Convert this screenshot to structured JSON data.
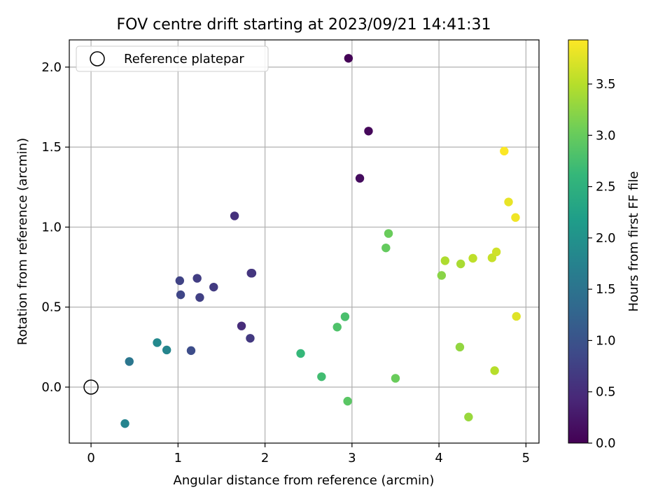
{
  "chart_data": {
    "type": "scatter",
    "title": "FOV centre drift starting at 2023/09/21 14:41:31",
    "xlabel": "Angular distance from reference (arcmin)",
    "ylabel": "Rotation from reference (arcmin)",
    "xlim": [
      -0.25,
      5.15
    ],
    "ylim": [
      -0.35,
      2.17
    ],
    "xticks": [
      0,
      1,
      2,
      3,
      4,
      5
    ],
    "xtick_labels": [
      "0",
      "1",
      "2",
      "3",
      "4",
      "5"
    ],
    "yticks": [
      0.0,
      0.5,
      1.0,
      1.5,
      2.0
    ],
    "ytick_labels": [
      "0.0",
      "0.5",
      "1.0",
      "1.5",
      "2.0"
    ],
    "grid": true,
    "legend": {
      "placement": "top-left",
      "entries": [
        "Reference platepar"
      ]
    },
    "colorbar": {
      "label": "Hours from first FF file",
      "colormap": "viridis",
      "range": [
        0.0,
        3.93
      ],
      "ticks": [
        0.0,
        0.5,
        1.0,
        1.5,
        2.0,
        2.5,
        3.0,
        3.5
      ],
      "tick_labels": [
        "0.0",
        "0.5",
        "1.0",
        "1.5",
        "2.0",
        "2.5",
        "3.0",
        "3.5"
      ]
    },
    "reference_point": {
      "x": 0.0,
      "y": 0.0
    },
    "points": [
      {
        "x": 2.96,
        "y": 2.055,
        "c": 0.02
      },
      {
        "x": 3.19,
        "y": 1.6,
        "c": 0.07
      },
      {
        "x": 3.09,
        "y": 1.305,
        "c": 0.12
      },
      {
        "x": 1.65,
        "y": 1.07,
        "c": 0.55
      },
      {
        "x": 1.84,
        "y": 0.712,
        "c": 0.58
      },
      {
        "x": 1.85,
        "y": 0.712,
        "c": 0.62
      },
      {
        "x": 1.22,
        "y": 0.68,
        "c": 0.72
      },
      {
        "x": 1.02,
        "y": 0.665,
        "c": 0.78
      },
      {
        "x": 1.41,
        "y": 0.625,
        "c": 0.68
      },
      {
        "x": 1.03,
        "y": 0.577,
        "c": 0.82
      },
      {
        "x": 1.25,
        "y": 0.56,
        "c": 0.75
      },
      {
        "x": 1.73,
        "y": 0.382,
        "c": 0.5
      },
      {
        "x": 1.83,
        "y": 0.305,
        "c": 0.65
      },
      {
        "x": 1.15,
        "y": 0.228,
        "c": 0.92
      },
      {
        "x": 0.44,
        "y": 0.16,
        "c": 1.55
      },
      {
        "x": 0.76,
        "y": 0.278,
        "c": 1.85
      },
      {
        "x": 0.87,
        "y": 0.232,
        "c": 1.8
      },
      {
        "x": 0.39,
        "y": -0.228,
        "c": 1.78
      },
      {
        "x": 2.41,
        "y": 0.21,
        "c": 2.62
      },
      {
        "x": 2.65,
        "y": 0.065,
        "c": 2.72
      },
      {
        "x": 2.83,
        "y": 0.375,
        "c": 2.82
      },
      {
        "x": 2.92,
        "y": 0.44,
        "c": 2.78
      },
      {
        "x": 2.95,
        "y": -0.088,
        "c": 2.9
      },
      {
        "x": 3.5,
        "y": 0.055,
        "c": 3.02
      },
      {
        "x": 3.39,
        "y": 0.87,
        "c": 2.98
      },
      {
        "x": 3.42,
        "y": 0.96,
        "c": 3.02
      },
      {
        "x": 4.03,
        "y": 0.698,
        "c": 3.22
      },
      {
        "x": 4.07,
        "y": 0.79,
        "c": 3.45
      },
      {
        "x": 4.24,
        "y": 0.25,
        "c": 3.28
      },
      {
        "x": 4.25,
        "y": 0.77,
        "c": 3.42
      },
      {
        "x": 4.34,
        "y": -0.187,
        "c": 3.32
      },
      {
        "x": 4.39,
        "y": 0.805,
        "c": 3.55
      },
      {
        "x": 4.61,
        "y": 0.808,
        "c": 3.6
      },
      {
        "x": 4.64,
        "y": 0.103,
        "c": 3.5
      },
      {
        "x": 4.66,
        "y": 0.845,
        "c": 3.65
      },
      {
        "x": 4.75,
        "y": 1.475,
        "c": 3.92
      },
      {
        "x": 4.8,
        "y": 1.157,
        "c": 3.8
      },
      {
        "x": 4.88,
        "y": 1.06,
        "c": 3.85
      },
      {
        "x": 4.89,
        "y": 0.442,
        "c": 3.75
      }
    ]
  }
}
